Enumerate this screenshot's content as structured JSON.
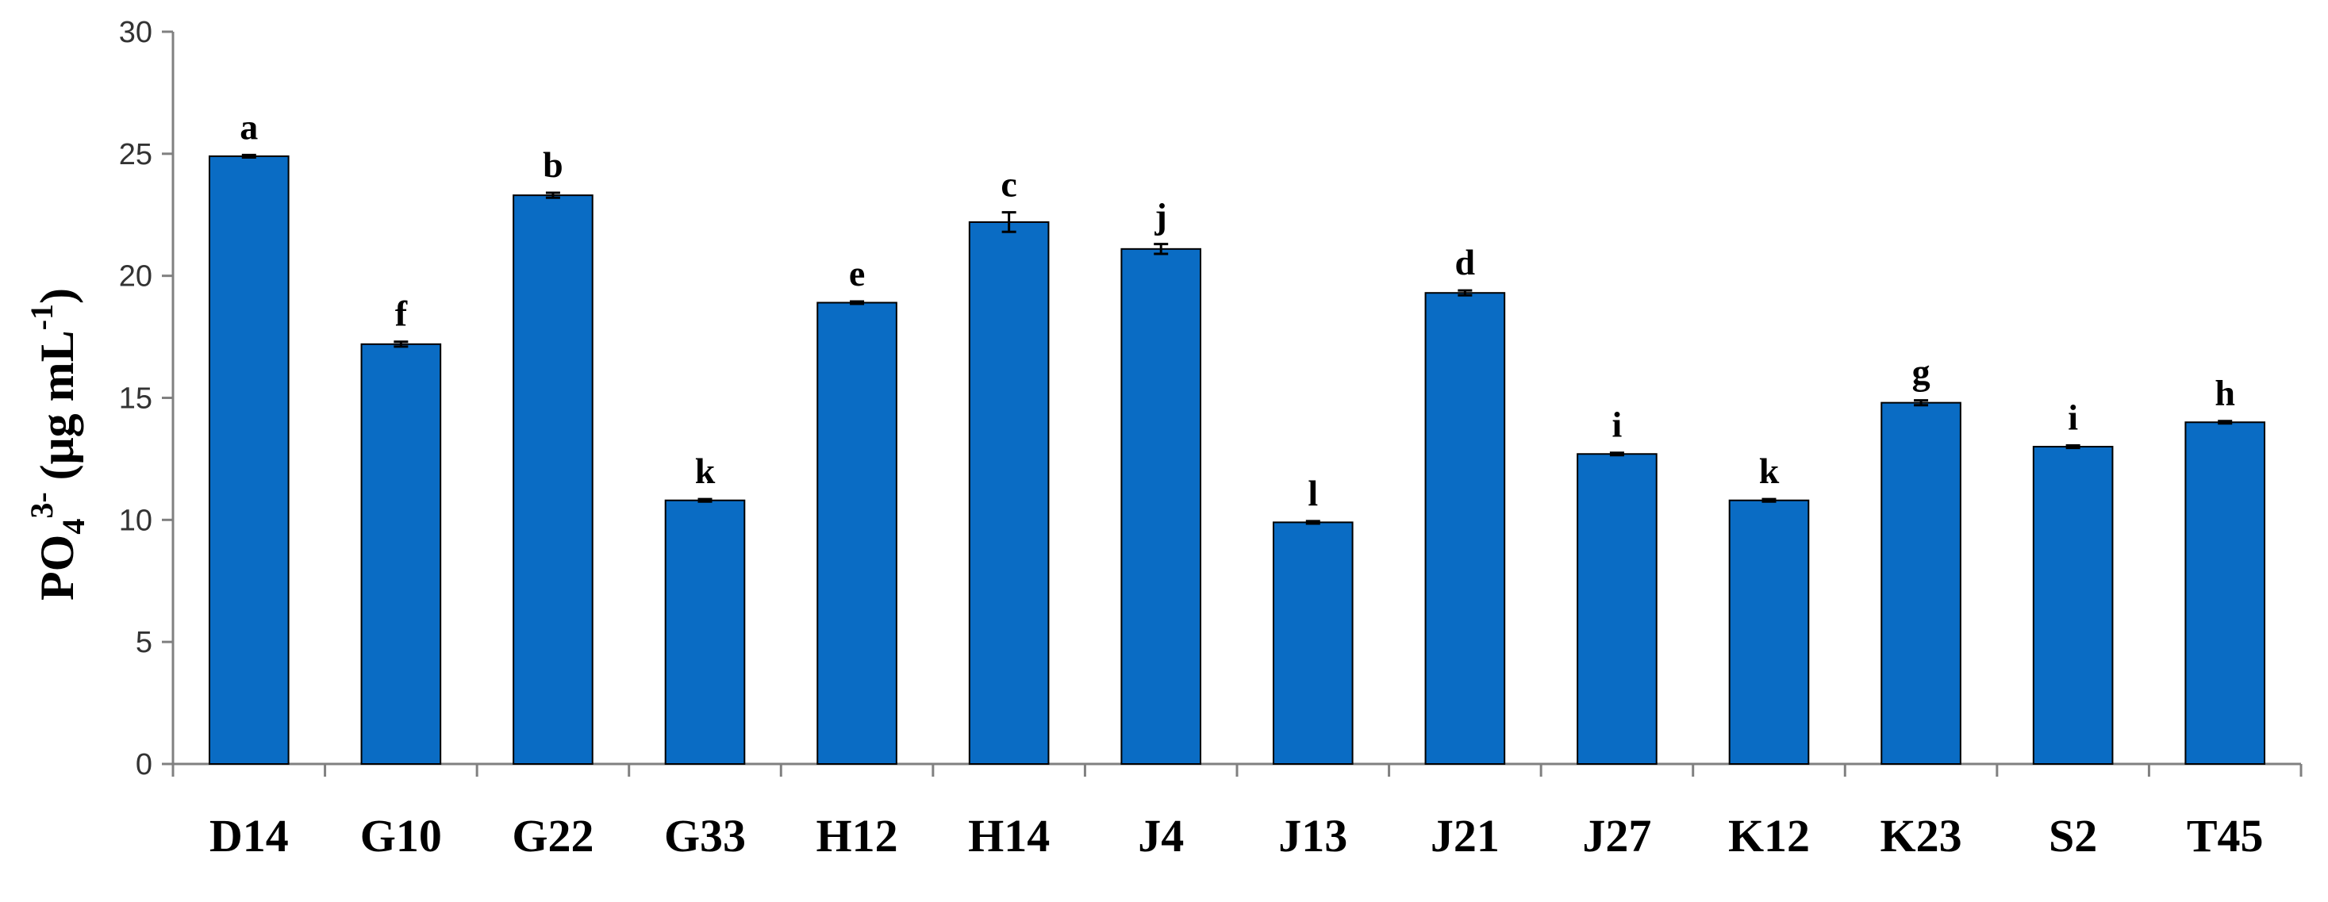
{
  "chart_data": {
    "type": "bar",
    "categories": [
      "D14",
      "G10",
      "G22",
      "G33",
      "H12",
      "H14",
      "J4",
      "J13",
      "J21",
      "J27",
      "K12",
      "K23",
      "S2",
      "T45"
    ],
    "values": [
      24.9,
      17.2,
      23.3,
      10.8,
      18.9,
      22.2,
      21.1,
      9.9,
      19.3,
      12.7,
      10.8,
      14.8,
      13.0,
      14.0
    ],
    "errors": [
      0.05,
      0.1,
      0.1,
      0.05,
      0.05,
      0.4,
      0.2,
      0.05,
      0.1,
      0.05,
      0.05,
      0.1,
      0.05,
      0.05
    ],
    "significance": [
      "a",
      "f",
      "b",
      "k",
      "e",
      "c",
      "j",
      "l",
      "d",
      "i",
      "k",
      "g",
      "i",
      "h"
    ],
    "ylabel": {
      "main": "PO",
      "sub": "4",
      "sup": "3-",
      "unit_open": " (μg mL",
      "unit_sup": "-1",
      "unit_close": ")"
    },
    "xlabel": "",
    "ylim": [
      0,
      30
    ],
    "yticks": [
      0,
      5,
      10,
      15,
      20,
      25,
      30
    ],
    "grid": false,
    "bar_color": "#0a6cc4"
  }
}
